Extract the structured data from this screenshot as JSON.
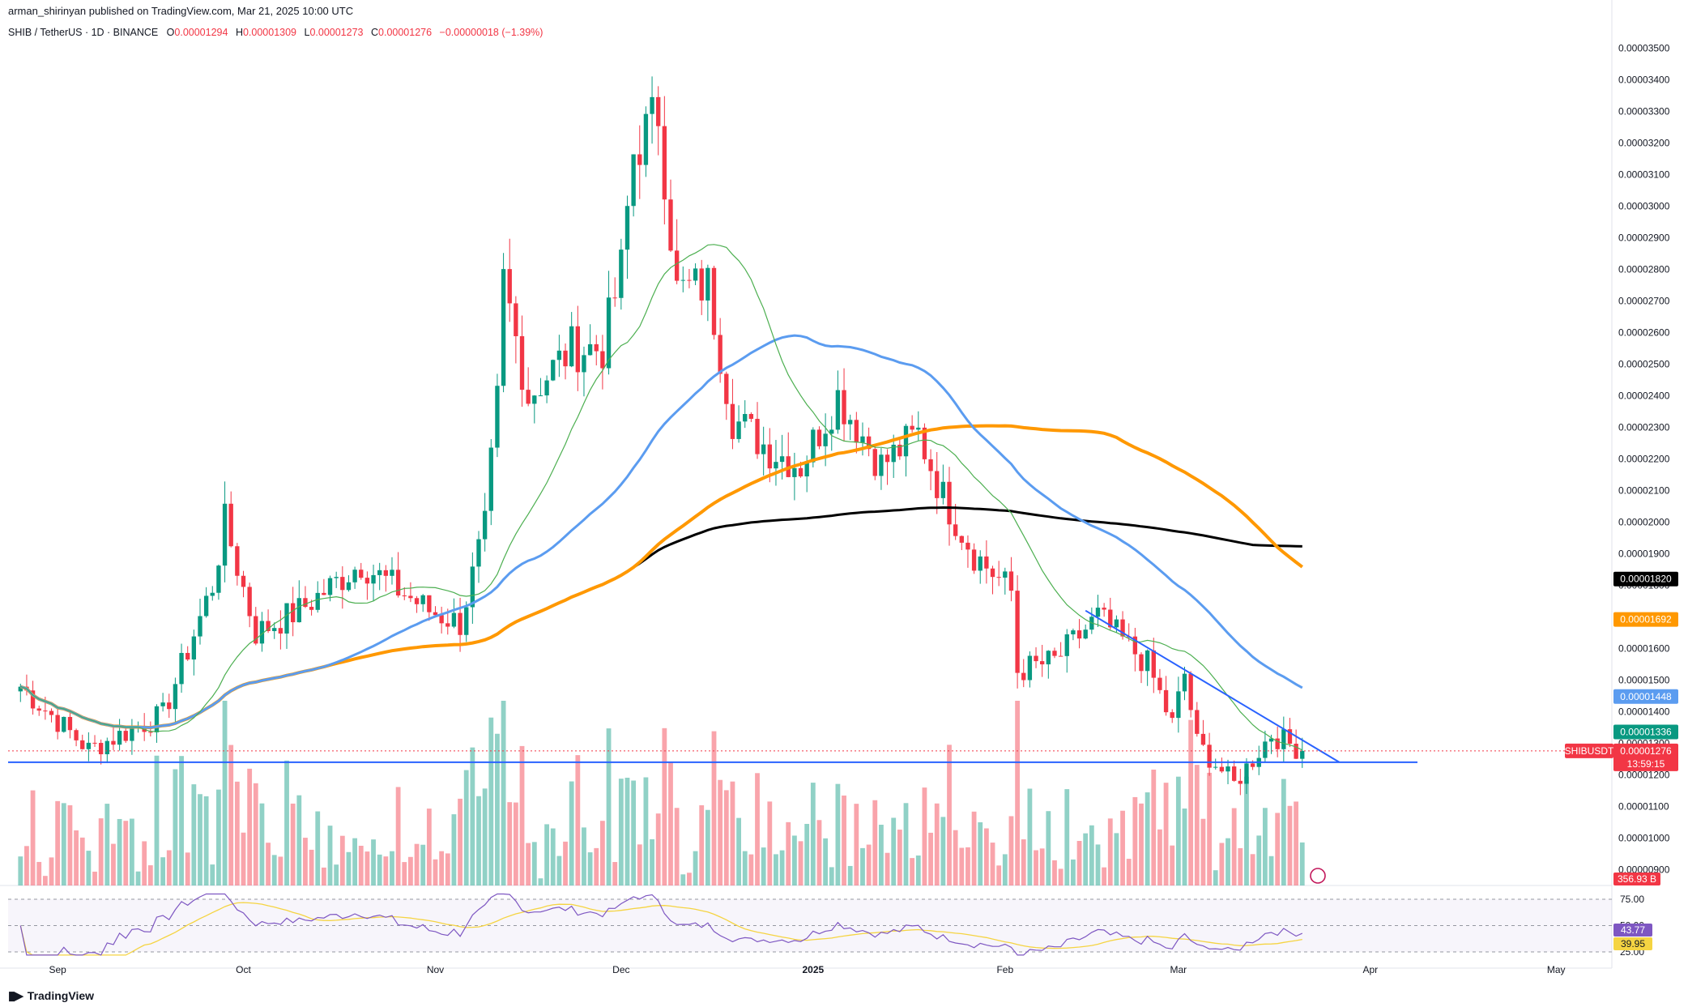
{
  "publisher": "arman_shirinyan published on TradingView.com, Mar 21, 2025 10:00 UTC",
  "footer_brand": "TradingView",
  "symbol_line": {
    "name": "SHIB / TetherUS · 1D · BINANCE",
    "o_label": "O",
    "o": "0.00001294",
    "h_label": "H",
    "h": "0.00001309",
    "l_label": "L",
    "l": "0.00001273",
    "c_label": "C",
    "c": "0.00001276",
    "change": "−0.00000018 (−1.39%)"
  },
  "colors": {
    "up": "#089981",
    "down": "#f23645",
    "ma20": "#4caf50",
    "ma50": "#5b9cf0",
    "ma100": "#ff9800",
    "ma200": "#000000",
    "trend": "#2962ff",
    "rsi": "#7e57c2",
    "rsi_ma": "#f5d442"
  },
  "chart_data": {
    "type": "candlestick",
    "price_axis": {
      "min": 8.5e-06,
      "max": 3.55e-05,
      "ticks": [
        "0.00003500",
        "0.00003400",
        "0.00003300",
        "0.00003200",
        "0.00003100",
        "0.00003000",
        "0.00002900",
        "0.00002800",
        "0.00002700",
        "0.00002600",
        "0.00002500",
        "0.00002400",
        "0.00002300",
        "0.00002200",
        "0.00002100",
        "0.00002000",
        "0.00001900",
        "0.00001800",
        "0.00001700",
        "0.00001600",
        "0.00001500",
        "0.00001400",
        "0.00001300",
        "0.00001200",
        "0.00001100",
        "0.00001000",
        "0.00000900"
      ]
    },
    "time_axis": [
      "Sep",
      "Oct",
      "Nov",
      "Dec",
      "2025",
      "Feb",
      "Mar",
      "Apr",
      "May"
    ],
    "ohlc_keypoints": [
      [
        "2024-08-26",
        1.48e-05
      ],
      [
        "2024-09-06",
        1.28e-05
      ],
      [
        "2024-09-18",
        1.39e-05
      ],
      [
        "2024-09-26",
        1.8e-05
      ],
      [
        "2024-09-28",
        2e-05
      ],
      [
        "2024-10-03",
        1.65e-05
      ],
      [
        "2024-10-10",
        1.72e-05
      ],
      [
        "2024-10-20",
        1.87e-05
      ],
      [
        "2024-10-25",
        1.8e-05
      ],
      [
        "2024-10-31",
        1.72e-05
      ],
      [
        "2024-11-05",
        1.68e-05
      ],
      [
        "2024-11-09",
        1.98e-05
      ],
      [
        "2024-11-11",
        2.38e-05
      ],
      [
        "2024-11-12",
        2.76e-05
      ],
      [
        "2024-11-16",
        2.4e-05
      ],
      [
        "2024-11-23",
        2.55e-05
      ],
      [
        "2024-11-28",
        2.55e-05
      ],
      [
        "2024-12-01",
        2.8e-05
      ],
      [
        "2024-12-03",
        3.17e-05
      ],
      [
        "2024-12-07",
        3.3e-05
      ],
      [
        "2024-12-10",
        2.73e-05
      ],
      [
        "2024-12-15",
        2.75e-05
      ],
      [
        "2024-12-19",
        2.33e-05
      ],
      [
        "2024-12-25",
        2.23e-05
      ],
      [
        "2024-12-30",
        2.18e-05
      ],
      [
        "2025-01-05",
        2.4e-05
      ],
      [
        "2025-01-12",
        2.18e-05
      ],
      [
        "2025-01-18",
        2.28e-05
      ],
      [
        "2025-01-22",
        2.08e-05
      ],
      [
        "2025-01-27",
        1.9e-05
      ],
      [
        "2025-02-02",
        1.78e-05
      ],
      [
        "2025-02-03",
        1.53e-05
      ],
      [
        "2025-02-09",
        1.56e-05
      ],
      [
        "2025-02-16",
        1.7e-05
      ],
      [
        "2025-02-24",
        1.55e-05
      ],
      [
        "2025-02-28",
        1.36e-05
      ],
      [
        "2025-03-02",
        1.52e-05
      ],
      [
        "2025-03-04",
        1.3e-05
      ],
      [
        "2025-03-10",
        1.17e-05
      ],
      [
        "2025-03-16",
        1.33e-05
      ],
      [
        "2025-03-21",
        1.276e-05
      ]
    ],
    "moving_averages": [
      {
        "value": "0.00001820"
      },
      {
        "value": "0.00001692"
      },
      {
        "value": "0.00001448"
      },
      {
        "value": "0.00001336"
      }
    ],
    "horizontal_line": 1.24e-05,
    "trend_line": {
      "from": [
        "2025-02-14",
        1.72e-05
      ],
      "to": [
        "2025-03-27",
        1.24e-05
      ]
    },
    "last_price": {
      "symbol": "SHIBUSDT",
      "value": "0.00001276",
      "countdown": "13:59:15"
    },
    "volume_label": "356.93 B",
    "rsi": {
      "ticks": [
        "75.00",
        "50.00",
        "25.00"
      ],
      "value": "43.77",
      "ma_value": "39.95"
    }
  }
}
